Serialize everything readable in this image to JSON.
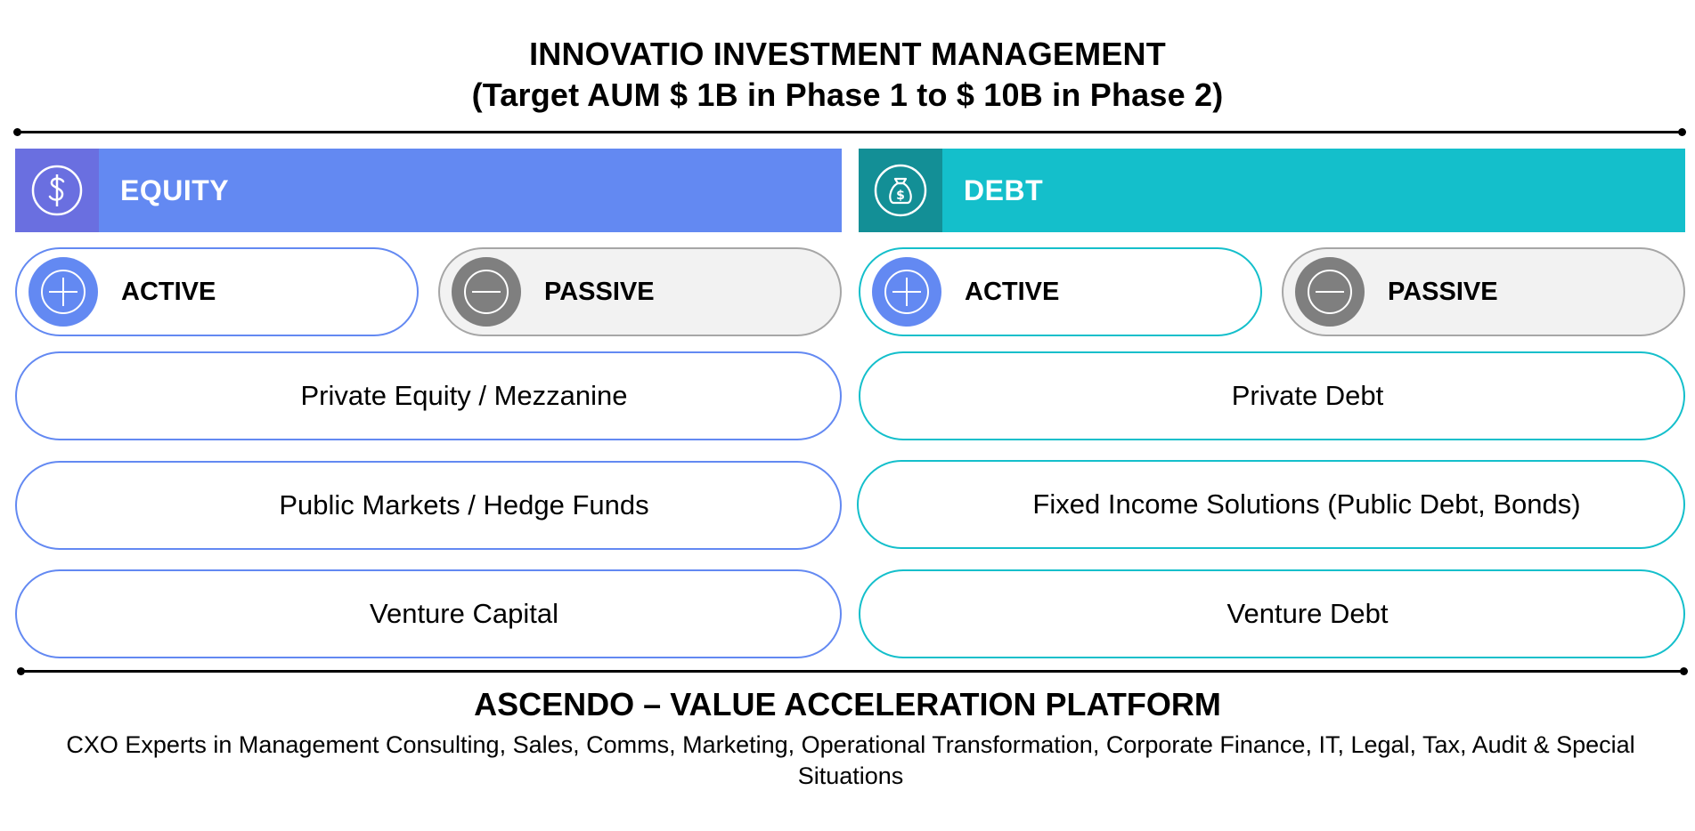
{
  "header": {
    "title": "INNOVATIO INVESTMENT MANAGEMENT",
    "subtitle": "(Target AUM $ 1B in Phase 1 to $ 10B in Phase 2)"
  },
  "equity": {
    "label": "EQUITY",
    "icon": "dollar-circle-icon",
    "bar_color": "#6389F2",
    "icon_box_color": "#6A6FE0",
    "active_label": "ACTIVE",
    "passive_label": "PASSIVE",
    "items": [
      "Private Equity / Mezzanine",
      "Public Markets / Hedge Funds",
      "Venture Capital"
    ]
  },
  "debt": {
    "label": "DEBT",
    "icon": "money-bag-icon",
    "bar_color": "#14BFCB",
    "icon_box_color": "#138F96",
    "active_label": "ACTIVE",
    "passive_label": "PASSIVE",
    "items": [
      "Private Debt",
      "Fixed Income Solutions (Public Debt, Bonds)",
      "Venture Debt"
    ]
  },
  "platform": {
    "title": "ASCENDO – VALUE ACCELERATION PLATFORM",
    "description": "CXO Experts in Management Consulting, Sales, Comms, Marketing, Operational Transformation, Corporate Finance, IT, Legal, Tax, Audit & Special Situations"
  }
}
